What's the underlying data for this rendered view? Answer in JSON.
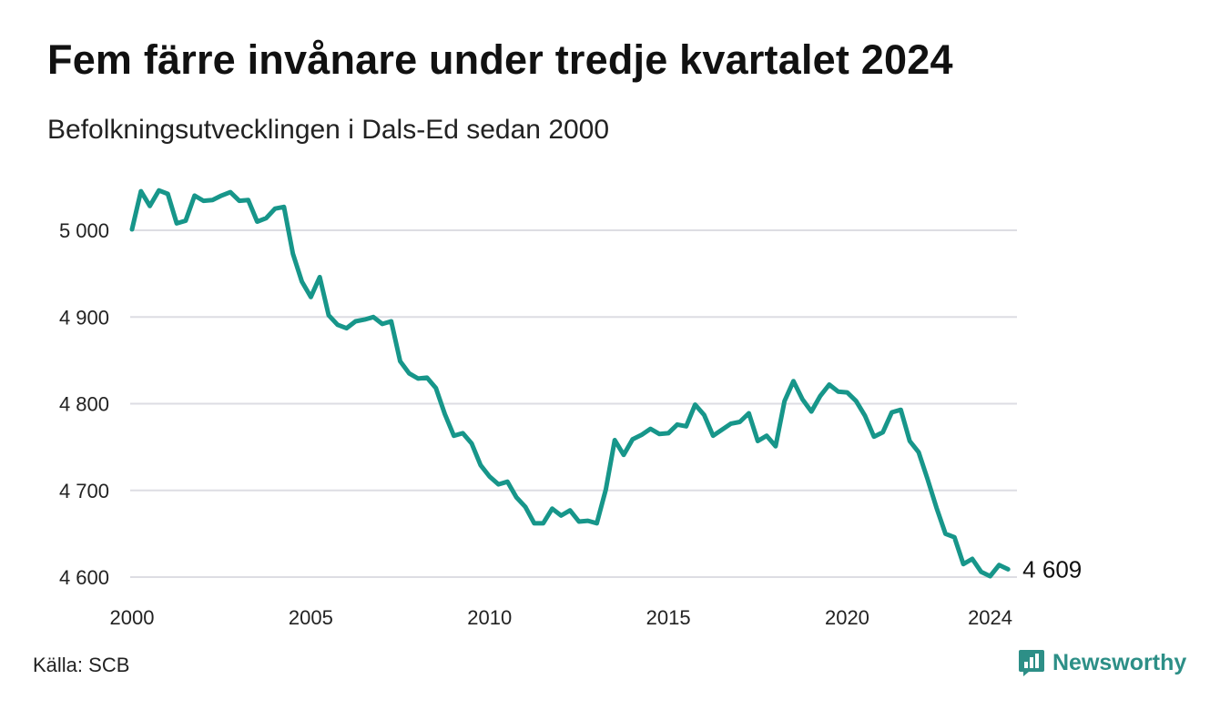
{
  "header": {
    "title": "Fem färre invånare under tredje kvartalet 2024",
    "subtitle": "Befolkningsutvecklingen i Dals-Ed sedan 2000"
  },
  "footer": {
    "source": "Källa: SCB",
    "brand": "Newsworthy",
    "brand_icon": "bar-chart-logo-icon"
  },
  "colors": {
    "line": "#17968a",
    "grid": "#dddde3",
    "brand": "#2d8f87"
  },
  "chart_data": {
    "type": "line",
    "title": "Fem färre invånare under tredje kvartalet 2024",
    "subtitle": "Befolkningsutvecklingen i Dals-Ed sedan 2000",
    "xlim": [
      2000,
      2024.75
    ],
    "ylim": [
      4600,
      5000
    ],
    "x_ticks": [
      2000,
      2005,
      2010,
      2015,
      2020,
      2024
    ],
    "x_tick_labels": [
      "2000",
      "2005",
      "2010",
      "2015",
      "2020",
      "2024"
    ],
    "y_ticks": [
      4600,
      4700,
      4800,
      4900,
      5000
    ],
    "y_tick_labels": [
      "4 600",
      "4 700",
      "4 800",
      "4 900",
      "5 000"
    ],
    "grid": "horizontal",
    "end_label": "4 609",
    "series": [
      {
        "x": [
          2000,
          2000.25,
          2000.5,
          2000.75,
          2001,
          2001.25,
          2001.5,
          2001.75,
          2002,
          2002.25,
          2002.5,
          2002.75,
          2003,
          2003.25,
          2003.5,
          2003.75,
          2004,
          2004.25,
          2004.5,
          2004.75,
          2005,
          2005.25,
          2005.5,
          2005.75,
          2006,
          2006.25,
          2006.5,
          2006.75,
          2007,
          2007.25,
          2007.5,
          2007.75,
          2008,
          2008.25,
          2008.5,
          2008.75,
          2009,
          2009.25,
          2009.5,
          2009.75,
          2010,
          2010.25,
          2010.5,
          2010.75,
          2011,
          2011.25,
          2011.5,
          2011.75,
          2012,
          2012.25,
          2012.5,
          2012.75,
          2013,
          2013.25,
          2013.5,
          2013.75,
          2014,
          2014.25,
          2014.5,
          2014.75,
          2015,
          2015.25,
          2015.5,
          2015.75,
          2016,
          2016.25,
          2016.5,
          2016.75,
          2017,
          2017.25,
          2017.5,
          2017.75,
          2018,
          2018.25,
          2018.5,
          2018.75,
          2019,
          2019.25,
          2019.5,
          2019.75,
          2020,
          2020.25,
          2020.5,
          2020.75,
          2021,
          2021.25,
          2021.5,
          2021.75,
          2022,
          2022.25,
          2022.5,
          2022.75,
          2023,
          2023.25,
          2023.5,
          2023.75,
          2024,
          2024.25,
          2024.5
        ],
        "values": [
          5001,
          5045,
          5028,
          5046,
          5042,
          5008,
          5011,
          5040,
          5034,
          5035,
          5040,
          5044,
          5034,
          5035,
          5010,
          5014,
          5025,
          5027,
          4973,
          4941,
          4923,
          4946,
          4902,
          4891,
          4887,
          4895,
          4897,
          4900,
          4892,
          4895,
          4849,
          4835,
          4829,
          4830,
          4818,
          4788,
          4763,
          4766,
          4754,
          4729,
          4716,
          4707,
          4710,
          4692,
          4681,
          4662,
          4662,
          4679,
          4671,
          4677,
          4664,
          4665,
          4662,
          4701,
          4758,
          4741,
          4759,
          4764,
          4771,
          4765,
          4766,
          4776,
          4774,
          4799,
          4787,
          4763,
          4770,
          4777,
          4779,
          4789,
          4757,
          4763,
          4751,
          4803,
          4826,
          4805,
          4791,
          4809,
          4822,
          4814,
          4813,
          4803,
          4786,
          4762,
          4767,
          4790,
          4793,
          4757,
          4744,
          4713,
          4680,
          4650,
          4646,
          4615,
          4621,
          4606,
          4601,
          4614,
          4609
        ]
      }
    ]
  }
}
